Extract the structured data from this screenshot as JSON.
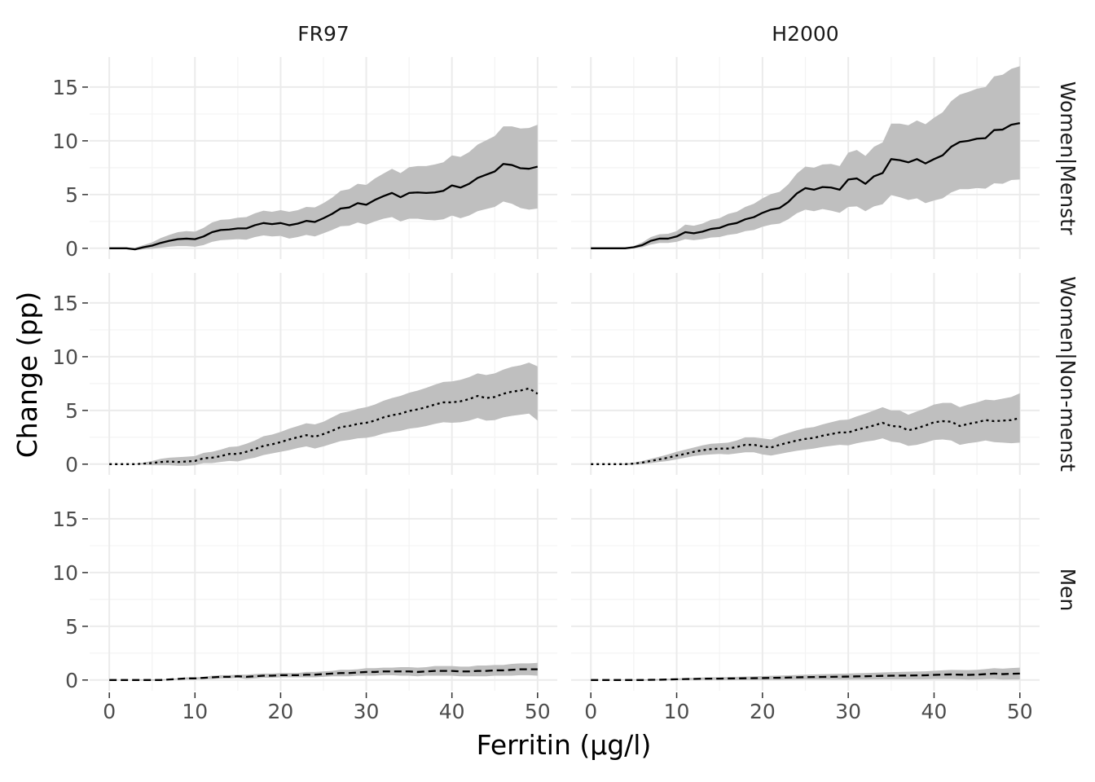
{
  "chart_data": {
    "type": "line",
    "xlabel": "Ferritin (µg/l)",
    "ylabel": "Change (pp)",
    "xlim": [
      0,
      50
    ],
    "ylim": [
      0,
      16
    ],
    "x_ticks": [
      0,
      10,
      20,
      30,
      40,
      50
    ],
    "y_ticks": [
      0,
      5,
      10,
      15
    ],
    "x_tick_labels": [
      "0",
      "10",
      "20",
      "30",
      "40",
      "50"
    ],
    "y_tick_labels": [
      "0",
      "5",
      "10",
      "15"
    ],
    "grid": true,
    "band_color": "#bfbfbf",
    "line_color": "#000000",
    "columns": [
      "FR97",
      "H2000"
    ],
    "rows": [
      "Women|Menstr",
      "Women|Non-menst",
      "Men"
    ],
    "x": [
      0,
      1,
      2,
      3,
      4,
      5,
      6,
      7,
      8,
      9,
      10,
      11,
      12,
      13,
      14,
      15,
      16,
      17,
      18,
      19,
      20,
      21,
      22,
      23,
      24,
      25,
      26,
      27,
      28,
      29,
      30,
      31,
      32,
      33,
      34,
      35,
      36,
      37,
      38,
      39,
      40,
      41,
      42,
      43,
      44,
      45,
      46,
      47,
      48,
      49,
      50
    ],
    "panels": [
      {
        "column": "FR97",
        "row": "Women|Menstr",
        "line_style": "solid",
        "y": [
          0,
          0,
          0,
          -0.1,
          0.1,
          0.25,
          0.5,
          0.7,
          0.85,
          0.9,
          0.85,
          1.1,
          1.5,
          1.7,
          1.75,
          1.85,
          1.85,
          2.15,
          2.35,
          2.25,
          2.35,
          2.15,
          2.3,
          2.55,
          2.45,
          2.8,
          3.2,
          3.7,
          3.8,
          4.2,
          4.05,
          4.5,
          4.85,
          5.15,
          4.75,
          5.15,
          5.2,
          5.15,
          5.2,
          5.35,
          5.85,
          5.65,
          6.0,
          6.55,
          6.85,
          7.15,
          7.85,
          7.75,
          7.45,
          7.4,
          7.6
        ],
        "lower": [
          0,
          0,
          0,
          -0.15,
          -0.1,
          -0.05,
          0.05,
          0.15,
          0.2,
          0.2,
          0.15,
          0.3,
          0.6,
          0.75,
          0.8,
          0.85,
          0.8,
          1.05,
          1.2,
          1.1,
          1.15,
          0.9,
          1.05,
          1.25,
          1.1,
          1.4,
          1.7,
          2.05,
          2.1,
          2.4,
          2.2,
          2.5,
          2.75,
          2.9,
          2.5,
          2.75,
          2.75,
          2.65,
          2.6,
          2.7,
          3.05,
          2.8,
          3.05,
          3.45,
          3.65,
          3.85,
          4.35,
          4.15,
          3.75,
          3.6,
          3.7
        ],
        "upper": [
          0,
          0,
          0,
          0.05,
          0.3,
          0.55,
          0.95,
          1.25,
          1.5,
          1.6,
          1.55,
          1.9,
          2.4,
          2.65,
          2.7,
          2.85,
          2.9,
          3.25,
          3.5,
          3.4,
          3.55,
          3.4,
          3.55,
          3.85,
          3.8,
          4.2,
          4.7,
          5.35,
          5.5,
          6.0,
          5.9,
          6.5,
          6.95,
          7.4,
          7.0,
          7.55,
          7.65,
          7.65,
          7.8,
          8.0,
          8.65,
          8.5,
          8.95,
          9.65,
          10.05,
          10.45,
          11.35,
          11.35,
          11.15,
          11.2,
          11.5
        ]
      },
      {
        "column": "H2000",
        "row": "Women|Menstr",
        "line_style": "solid",
        "y": [
          0,
          0,
          0,
          0,
          0,
          0.1,
          0.3,
          0.7,
          0.9,
          0.9,
          1.1,
          1.5,
          1.4,
          1.55,
          1.8,
          1.9,
          2.2,
          2.35,
          2.7,
          2.9,
          3.3,
          3.6,
          3.75,
          4.3,
          5.1,
          5.6,
          5.45,
          5.7,
          5.65,
          5.45,
          6.4,
          6.5,
          6.0,
          6.7,
          7.0,
          8.3,
          8.2,
          8.0,
          8.3,
          7.9,
          8.3,
          8.65,
          9.45,
          9.9,
          10.0,
          10.2,
          10.25,
          11.0,
          11.05,
          11.5,
          11.65
        ],
        "lower": [
          0,
          0,
          0,
          0,
          -0.05,
          0,
          0.1,
          0.35,
          0.5,
          0.5,
          0.6,
          0.85,
          0.75,
          0.85,
          1.0,
          1.05,
          1.25,
          1.35,
          1.6,
          1.7,
          2.0,
          2.2,
          2.3,
          2.7,
          3.25,
          3.6,
          3.45,
          3.65,
          3.5,
          3.3,
          3.85,
          3.9,
          3.45,
          3.9,
          4.1,
          4.95,
          4.75,
          4.5,
          4.65,
          4.2,
          4.45,
          4.65,
          5.2,
          5.5,
          5.5,
          5.6,
          5.55,
          6.05,
          6.0,
          6.35,
          6.4
        ],
        "upper": [
          0,
          0,
          0,
          0,
          0.05,
          0.2,
          0.55,
          1.05,
          1.3,
          1.35,
          1.6,
          2.2,
          2.1,
          2.3,
          2.65,
          2.8,
          3.2,
          3.4,
          3.85,
          4.15,
          4.65,
          5.05,
          5.25,
          5.95,
          6.95,
          7.6,
          7.5,
          7.8,
          7.85,
          7.65,
          8.9,
          9.15,
          8.6,
          9.45,
          9.85,
          11.6,
          11.6,
          11.45,
          11.9,
          11.55,
          12.15,
          12.65,
          13.7,
          14.3,
          14.55,
          14.85,
          15.0,
          16.0,
          16.15,
          16.7,
          16.95
        ]
      },
      {
        "column": "FR97",
        "row": "Women|Non-menst",
        "line_style": "dotted",
        "y": [
          0,
          0,
          0,
          0,
          0.05,
          0.1,
          0.2,
          0.25,
          0.2,
          0.25,
          0.3,
          0.55,
          0.6,
          0.75,
          0.95,
          0.95,
          1.15,
          1.4,
          1.7,
          1.85,
          2.05,
          2.3,
          2.5,
          2.7,
          2.55,
          2.8,
          3.1,
          3.45,
          3.55,
          3.75,
          3.85,
          4.05,
          4.35,
          4.55,
          4.7,
          4.95,
          5.1,
          5.3,
          5.55,
          5.75,
          5.75,
          5.85,
          6.05,
          6.35,
          6.15,
          6.25,
          6.55,
          6.75,
          6.85,
          7.05,
          6.55
        ],
        "lower": [
          0,
          0,
          0,
          0,
          -0.05,
          -0.1,
          -0.1,
          -0.1,
          -0.15,
          -0.15,
          -0.1,
          0.1,
          0.1,
          0.2,
          0.3,
          0.25,
          0.45,
          0.6,
          0.85,
          1.0,
          1.15,
          1.3,
          1.5,
          1.65,
          1.45,
          1.65,
          1.9,
          2.15,
          2.25,
          2.4,
          2.45,
          2.6,
          2.85,
          3.0,
          3.1,
          3.3,
          3.4,
          3.55,
          3.75,
          3.9,
          3.85,
          3.9,
          4.05,
          4.3,
          4.05,
          4.1,
          4.35,
          4.5,
          4.6,
          4.7,
          4.05
        ],
        "upper": [
          0,
          0,
          0,
          0,
          0.15,
          0.3,
          0.5,
          0.6,
          0.65,
          0.7,
          0.75,
          1.05,
          1.15,
          1.35,
          1.6,
          1.65,
          1.9,
          2.2,
          2.6,
          2.75,
          3.0,
          3.3,
          3.55,
          3.8,
          3.7,
          3.95,
          4.35,
          4.75,
          4.9,
          5.15,
          5.3,
          5.55,
          5.9,
          6.15,
          6.35,
          6.65,
          6.85,
          7.1,
          7.4,
          7.65,
          7.7,
          7.85,
          8.1,
          8.45,
          8.3,
          8.45,
          8.8,
          9.05,
          9.2,
          9.45,
          9.1
        ]
      },
      {
        "column": "H2000",
        "row": "Women|Non-menst",
        "line_style": "dotted",
        "y": [
          0,
          0,
          0,
          0,
          0,
          0.05,
          0.15,
          0.3,
          0.45,
          0.6,
          0.8,
          0.95,
          1.15,
          1.3,
          1.4,
          1.45,
          1.45,
          1.6,
          1.8,
          1.8,
          1.65,
          1.55,
          1.8,
          2.0,
          2.2,
          2.35,
          2.45,
          2.65,
          2.8,
          2.95,
          2.95,
          3.2,
          3.4,
          3.6,
          3.85,
          3.55,
          3.5,
          3.15,
          3.35,
          3.6,
          3.9,
          4.0,
          3.95,
          3.55,
          3.75,
          3.9,
          4.1,
          4.0,
          4.05,
          4.1,
          4.3
        ],
        "lower": [
          0,
          0,
          0,
          0,
          -0.05,
          -0.05,
          0.0,
          0.1,
          0.2,
          0.3,
          0.45,
          0.6,
          0.75,
          0.85,
          0.9,
          0.95,
          0.9,
          1.0,
          1.1,
          1.1,
          0.9,
          0.8,
          0.95,
          1.1,
          1.25,
          1.35,
          1.45,
          1.6,
          1.7,
          1.8,
          1.75,
          1.95,
          2.1,
          2.2,
          2.4,
          2.1,
          2.0,
          1.7,
          1.8,
          2.0,
          2.25,
          2.3,
          2.2,
          1.8,
          1.95,
          2.05,
          2.2,
          2.05,
          2.0,
          1.95,
          2.0
        ],
        "upper": [
          0,
          0,
          0,
          0,
          0.05,
          0.15,
          0.3,
          0.5,
          0.7,
          0.9,
          1.15,
          1.35,
          1.55,
          1.75,
          1.9,
          1.95,
          2.0,
          2.2,
          2.5,
          2.5,
          2.4,
          2.3,
          2.65,
          2.9,
          3.15,
          3.35,
          3.45,
          3.7,
          3.9,
          4.1,
          4.15,
          4.45,
          4.7,
          5.0,
          5.3,
          5.0,
          5.0,
          4.6,
          4.9,
          5.2,
          5.55,
          5.7,
          5.7,
          5.3,
          5.55,
          5.75,
          6.0,
          5.95,
          6.1,
          6.25,
          6.6
        ]
      },
      {
        "column": "FR97",
        "row": "Men",
        "line_style": "dashed",
        "y": [
          0,
          0,
          0,
          0,
          0,
          0,
          0,
          0.05,
          0.1,
          0.15,
          0.15,
          0.2,
          0.25,
          0.3,
          0.3,
          0.35,
          0.3,
          0.35,
          0.4,
          0.4,
          0.45,
          0.45,
          0.45,
          0.5,
          0.5,
          0.55,
          0.6,
          0.65,
          0.65,
          0.7,
          0.75,
          0.75,
          0.8,
          0.8,
          0.8,
          0.8,
          0.75,
          0.8,
          0.85,
          0.85,
          0.85,
          0.8,
          0.8,
          0.85,
          0.85,
          0.9,
          0.9,
          0.95,
          1.0,
          1.0,
          1.0
        ],
        "lower": [
          0,
          0,
          0,
          0,
          -0.05,
          -0.05,
          -0.05,
          0,
          0.05,
          0.05,
          0.05,
          0.1,
          0.1,
          0.15,
          0.15,
          0.2,
          0.1,
          0.15,
          0.2,
          0.2,
          0.25,
          0.25,
          0.25,
          0.25,
          0.25,
          0.3,
          0.35,
          0.35,
          0.35,
          0.4,
          0.4,
          0.4,
          0.45,
          0.45,
          0.4,
          0.4,
          0.35,
          0.4,
          0.4,
          0.4,
          0.4,
          0.35,
          0.35,
          0.35,
          0.35,
          0.4,
          0.4,
          0.4,
          0.45,
          0.45,
          0.4
        ],
        "upper": [
          0,
          0,
          0,
          0,
          0.05,
          0.05,
          0.05,
          0.1,
          0.15,
          0.25,
          0.25,
          0.3,
          0.4,
          0.45,
          0.45,
          0.5,
          0.5,
          0.55,
          0.6,
          0.6,
          0.65,
          0.65,
          0.65,
          0.75,
          0.75,
          0.8,
          0.85,
          0.95,
          0.95,
          1.0,
          1.1,
          1.1,
          1.15,
          1.15,
          1.2,
          1.2,
          1.15,
          1.2,
          1.3,
          1.3,
          1.3,
          1.25,
          1.25,
          1.35,
          1.35,
          1.4,
          1.4,
          1.5,
          1.55,
          1.55,
          1.6
        ]
      },
      {
        "column": "H2000",
        "row": "Men",
        "line_style": "dashed",
        "y": [
          0,
          0,
          0,
          0,
          0,
          0,
          0,
          0.02,
          0.03,
          0.05,
          0.07,
          0.09,
          0.1,
          0.12,
          0.13,
          0.13,
          0.14,
          0.15,
          0.16,
          0.17,
          0.18,
          0.2,
          0.21,
          0.23,
          0.25,
          0.27,
          0.28,
          0.29,
          0.3,
          0.31,
          0.32,
          0.34,
          0.35,
          0.37,
          0.39,
          0.4,
          0.41,
          0.42,
          0.43,
          0.44,
          0.48,
          0.5,
          0.52,
          0.5,
          0.48,
          0.5,
          0.55,
          0.6,
          0.55,
          0.58,
          0.6
        ],
        "lower": [
          0,
          0,
          0,
          0,
          -0.02,
          -0.03,
          -0.04,
          -0.03,
          -0.03,
          -0.02,
          -0.01,
          0,
          0,
          0.01,
          0.01,
          0,
          0,
          0,
          0,
          0,
          0,
          0.01,
          0.01,
          0.02,
          0.03,
          0.04,
          0.04,
          0.04,
          0.04,
          0.04,
          0.04,
          0.05,
          0.05,
          0.06,
          0.07,
          0.07,
          0.07,
          0.07,
          0.07,
          0.07,
          0.1,
          0.1,
          0.1,
          0.07,
          0.04,
          0.05,
          0.08,
          0.1,
          0.04,
          0.05,
          0.05
        ],
        "upper": [
          0,
          0,
          0,
          0,
          0.02,
          0.03,
          0.04,
          0.07,
          0.09,
          0.12,
          0.15,
          0.18,
          0.2,
          0.23,
          0.25,
          0.26,
          0.28,
          0.3,
          0.32,
          0.34,
          0.36,
          0.39,
          0.41,
          0.44,
          0.47,
          0.5,
          0.52,
          0.54,
          0.56,
          0.58,
          0.6,
          0.63,
          0.65,
          0.68,
          0.71,
          0.73,
          0.75,
          0.77,
          0.79,
          0.81,
          0.86,
          0.9,
          0.94,
          0.93,
          0.92,
          0.95,
          1.02,
          1.1,
          1.06,
          1.11,
          1.15
        ]
      }
    ]
  }
}
